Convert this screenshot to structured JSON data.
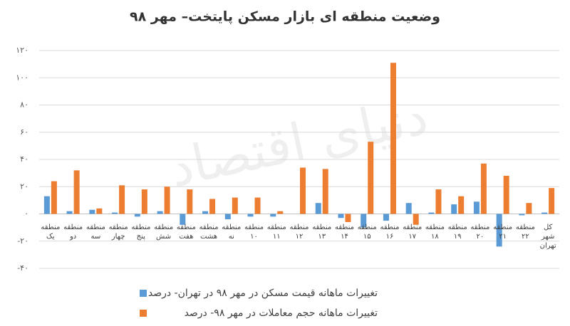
{
  "chart_data": {
    "type": "bar",
    "title": "وضعیت منطقه ای بازار مسکن پایتخت– مهر ۹۸",
    "watermark": "دنیای اقتصاد",
    "categories": [
      "منطقه یک",
      "منطقه دو",
      "منطقه سه",
      "منطقه چهار",
      "منطقه پنج",
      "منطقه شش",
      "منطقه هفت",
      "منطقه هشت",
      "منطقه نه",
      "منطقه ۱۰",
      "منطقه ۱۱",
      "منطقه ۱۲",
      "منطقه ۱۳",
      "منطقه ۱۴",
      "منطقه ۱۵",
      "منطقه ۱۶",
      "منطقه ۱۷",
      "منطقه ۱۸",
      "منطقه ۱۹",
      "منطقه ۲۰",
      "منطقه ۲۱",
      "منطقه ۲۲",
      "کل شهر تهران"
    ],
    "series": [
      {
        "name": "تغییرات ماهانه قیمت مسکن در مهر ۹۸ در تهران- درصد",
        "color": "#5b9bd5",
        "values": [
          13,
          2,
          3,
          1,
          -2,
          2,
          -8,
          2,
          -4,
          -2,
          -2,
          0,
          8,
          -3,
          -10,
          -5,
          8,
          1,
          7,
          9,
          -24,
          -1,
          1
        ]
      },
      {
        "name": "تغییرات ماهانه حجم معاملات در مهر ۹۸- درصد",
        "color": "#ed7d31",
        "values": [
          24,
          32,
          4,
          21,
          18,
          20,
          18,
          11,
          12,
          12,
          2,
          34,
          33,
          -6,
          53,
          111,
          -8,
          18,
          13,
          37,
          28,
          8,
          19
        ]
      }
    ],
    "ylim": [
      -40,
      120
    ],
    "yticks": [
      {
        "value": -40,
        "label": "-۴۰"
      },
      {
        "value": -20,
        "label": "-۲۰"
      },
      {
        "value": 0,
        "label": "۰"
      },
      {
        "value": 20,
        "label": "۲۰"
      },
      {
        "value": 40,
        "label": "۴۰"
      },
      {
        "value": 60,
        "label": "۶۰"
      },
      {
        "value": 80,
        "label": "۸۰"
      },
      {
        "value": 100,
        "label": "۱۰۰"
      },
      {
        "value": 120,
        "label": "۱۲۰"
      }
    ],
    "grid": true
  }
}
